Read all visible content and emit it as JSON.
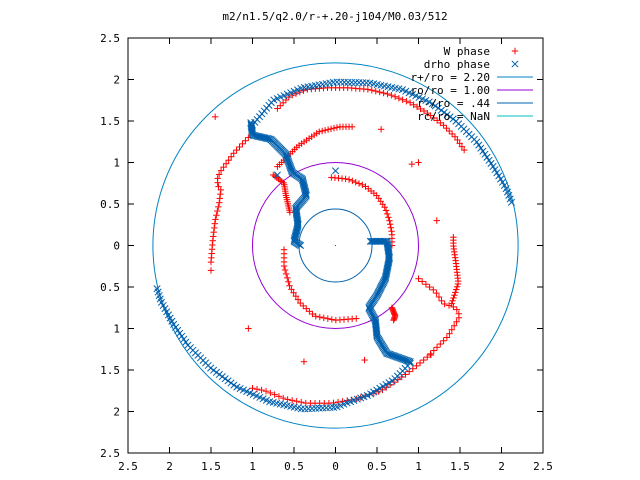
{
  "chart_data": {
    "type": "scatter",
    "title": "m2/n1.5/q2.0/r-+.20-j104/M0.03/512",
    "xlabel": "",
    "ylabel": "",
    "xlim": [
      -2.5,
      2.5
    ],
    "ylim": [
      -2.5,
      2.5
    ],
    "grid": false,
    "legend_position": "top-right",
    "x_ticks": [
      "2.5",
      "2",
      "1.5",
      "1",
      "0.5",
      "0",
      "0.5",
      "1",
      "1.5",
      "2",
      "2.5"
    ],
    "y_ticks": [
      "2.5",
      "2",
      "1.5",
      "1",
      "0.5",
      "0",
      "0.5",
      "1",
      "1.5",
      "2",
      "2.5"
    ],
    "legend": [
      {
        "label": "W phase",
        "style": "plus",
        "color": "#ff0000"
      },
      {
        "label": "drho phase",
        "style": "cross",
        "color": "#0060ad"
      },
      {
        "label": "r+/ro = 2.20",
        "style": "line",
        "color": "#0083c3"
      },
      {
        "label": "ro/ro = 1.00",
        "style": "line",
        "color": "#9400d3"
      },
      {
        "label": "r-/ro = .44",
        "style": "line",
        "color": "#0060ad"
      },
      {
        "label": "rc/ro = NaN",
        "style": "line",
        "color": "#00c0c0"
      }
    ],
    "circles": [
      {
        "name": "r+/ro = 2.20",
        "radius": 2.2,
        "color": "#0083c3"
      },
      {
        "name": "ro/ro = 1.00",
        "radius": 1.0,
        "color": "#9400d3"
      },
      {
        "name": "r-/ro = .44",
        "radius": 0.44,
        "color": "#0060ad"
      }
    ],
    "series": [
      {
        "name": "W phase",
        "color": "#ff0000",
        "marker": "plus",
        "arms": [
          {
            "points": [
              [
                -0.7,
                1.65
              ],
              [
                -0.55,
                1.8
              ],
              [
                -0.35,
                1.88
              ],
              [
                -0.1,
                1.9
              ],
              [
                0.15,
                1.9
              ],
              [
                0.4,
                1.88
              ],
              [
                0.65,
                1.82
              ],
              [
                0.9,
                1.72
              ],
              [
                1.1,
                1.6
              ],
              [
                1.3,
                1.45
              ],
              [
                1.45,
                1.3
              ],
              [
                1.55,
                1.15
              ]
            ],
            "n": 18
          },
          {
            "points": [
              [
                -1.05,
                1.3
              ],
              [
                -1.22,
                1.12
              ],
              [
                -1.38,
                0.9
              ],
              [
                -1.42,
                0.82
              ],
              [
                -1.42,
                0.72
              ],
              [
                -1.38,
                0.68
              ],
              [
                -1.4,
                0.52
              ],
              [
                -1.45,
                0.3
              ],
              [
                -1.48,
                0.05
              ],
              [
                -1.5,
                -0.2
              ]
            ],
            "n": 11
          },
          {
            "points": [
              [
                -0.7,
                0.95
              ],
              [
                -0.45,
                1.2
              ],
              [
                -0.2,
                1.37
              ],
              [
                0.05,
                1.43
              ],
              [
                0.2,
                1.43
              ]
            ],
            "n": 10
          },
          {
            "points": [
              [
                -0.75,
                0.85
              ],
              [
                -0.62,
                0.75
              ],
              [
                -0.6,
                0.62
              ],
              [
                -0.55,
                0.4
              ]
            ],
            "n": 7
          },
          {
            "points": [
              [
                -0.05,
                0.82
              ],
              [
                0.15,
                0.8
              ],
              [
                0.35,
                0.72
              ],
              [
                0.5,
                0.6
              ],
              [
                0.6,
                0.45
              ],
              [
                0.65,
                0.3
              ],
              [
                0.68,
                0.15
              ],
              [
                0.68,
                0.0
              ]
            ],
            "n": 10
          },
          {
            "points": [
              [
                1.0,
                -0.4
              ],
              [
                1.2,
                -0.55
              ],
              [
                1.3,
                -0.7
              ],
              [
                1.45,
                -0.75
              ],
              [
                1.5,
                -0.85
              ],
              [
                1.35,
                -1.1
              ],
              [
                1.1,
                -1.35
              ],
              [
                0.85,
                -1.55
              ],
              [
                0.55,
                -1.75
              ],
              [
                0.25,
                -1.85
              ],
              [
                -0.05,
                -1.9
              ],
              [
                -0.35,
                -1.9
              ],
              [
                -0.6,
                -1.85
              ],
              [
                -0.85,
                -1.75
              ],
              [
                -1.0,
                -1.72
              ]
            ],
            "n": 22
          },
          {
            "points": [
              [
                1.4,
                -0.7
              ],
              [
                1.48,
                -0.45
              ],
              [
                1.45,
                -0.2
              ],
              [
                1.42,
                0.0
              ],
              [
                1.42,
                0.1
              ]
            ],
            "n": 8
          },
          {
            "points": [
              [
                -0.62,
                -0.05
              ],
              [
                -0.62,
                -0.25
              ],
              [
                -0.55,
                -0.5
              ],
              [
                -0.42,
                -0.7
              ],
              [
                -0.25,
                -0.85
              ],
              [
                0.0,
                -0.9
              ],
              [
                0.25,
                -0.88
              ]
            ],
            "n": 10
          },
          {
            "points": [
              [
                0.68,
                -0.75
              ],
              [
                0.72,
                -0.85
              ],
              [
                0.7,
                -0.9
              ]
            ],
            "n": 4
          }
        ],
        "scatter": [
          [
            1.0,
            1.0
          ],
          [
            0.92,
            0.98
          ],
          [
            -1.05,
            -1.0
          ],
          [
            -0.38,
            -1.4
          ],
          [
            0.35,
            -1.38
          ],
          [
            1.15,
            -1.32
          ],
          [
            0.55,
            1.4
          ],
          [
            1.22,
            0.3
          ],
          [
            -1.45,
            1.55
          ],
          [
            -1.5,
            -0.3
          ]
        ]
      },
      {
        "name": "drho phase",
        "color": "#0060ad",
        "marker": "cross",
        "arms": [
          {
            "points": [
              [
                -1.0,
                1.45
              ],
              [
                -0.75,
                1.75
              ],
              [
                -0.4,
                1.9
              ],
              [
                0.0,
                1.97
              ],
              [
                0.4,
                1.96
              ],
              [
                0.8,
                1.88
              ],
              [
                1.15,
                1.72
              ],
              [
                1.45,
                1.5
              ],
              [
                1.7,
                1.25
              ],
              [
                1.9,
                0.95
              ],
              [
                2.05,
                0.7
              ],
              [
                2.12,
                0.52
              ]
            ],
            "n": 30
          },
          {
            "points": [
              [
                -1.02,
                1.48
              ],
              [
                -1.0,
                1.33
              ],
              [
                -0.78,
                1.28
              ],
              [
                -0.6,
                1.1
              ],
              [
                -0.52,
                0.88
              ],
              [
                -0.4,
                0.8
              ],
              [
                -0.35,
                0.6
              ],
              [
                -0.48,
                0.45
              ],
              [
                -0.45,
                0.25
              ],
              [
                -0.5,
                0.05
              ],
              [
                -0.42,
                0.0
              ]
            ],
            "n": 40
          },
          {
            "points": [
              [
                0.42,
                0.05
              ],
              [
                0.62,
                0.05
              ],
              [
                0.65,
                -0.15
              ],
              [
                0.6,
                -0.4
              ],
              [
                0.5,
                -0.6
              ],
              [
                0.4,
                -0.75
              ],
              [
                0.48,
                -0.9
              ],
              [
                0.5,
                -1.1
              ],
              [
                0.62,
                -1.3
              ],
              [
                0.9,
                -1.4
              ]
            ],
            "n": 40
          },
          {
            "points": [
              [
                0.9,
                -1.42
              ],
              [
                0.7,
                -1.62
              ],
              [
                0.4,
                -1.8
              ],
              [
                0.0,
                -1.95
              ],
              [
                -0.4,
                -1.97
              ],
              [
                -0.8,
                -1.88
              ],
              [
                -1.2,
                -1.7
              ],
              [
                -1.5,
                -1.48
              ],
              [
                -1.78,
                -1.2
              ],
              [
                -1.95,
                -0.95
              ],
              [
                -2.1,
                -0.68
              ],
              [
                -2.15,
                -0.52
              ]
            ],
            "n": 30
          }
        ],
        "scatter": [
          [
            -0.7,
            0.85
          ],
          [
            0.0,
            0.9
          ]
        ]
      }
    ]
  }
}
